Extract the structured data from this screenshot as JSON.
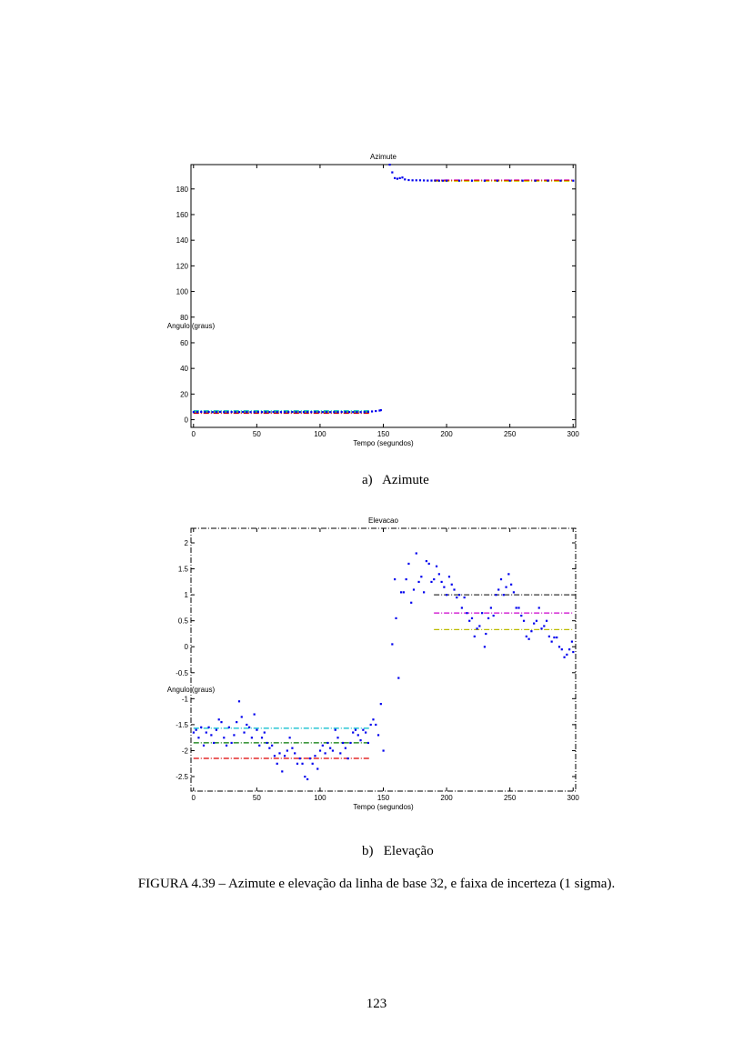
{
  "captions": {
    "a": "a)   Azimute",
    "b": "b)   Elevação",
    "figure": "FIGURA 4.39 – Azimute e elevação da linha de base 32, e faixa de incerteza (1 sigma).",
    "page_number": "123"
  },
  "chart_data": [
    {
      "type": "scatter",
      "title": "Azimute",
      "xlabel": "Tempo (segundos)",
      "ylabel": "Angulo (graus)",
      "xlim": [
        -2,
        302
      ],
      "ylim": [
        -6,
        199
      ],
      "xticks": [
        0,
        50,
        100,
        150,
        200,
        250,
        300
      ],
      "yticks": [
        0,
        20,
        40,
        60,
        80,
        100,
        120,
        140,
        160,
        180
      ],
      "ytick_labels": [
        "0",
        "20",
        "40",
        "60",
        "80",
        "100",
        "120",
        "140",
        "160",
        "180"
      ],
      "frame": "solid",
      "points": {
        "color": "#0000ee",
        "x": [
          0,
          3,
          6,
          9,
          12,
          15,
          18,
          21,
          24,
          27,
          30,
          33,
          36,
          39,
          42,
          45,
          48,
          51,
          54,
          57,
          60,
          63,
          66,
          69,
          72,
          75,
          78,
          81,
          84,
          87,
          90,
          93,
          96,
          99,
          102,
          105,
          108,
          111,
          114,
          117,
          120,
          123,
          126,
          129,
          132,
          135,
          138,
          141,
          144,
          147,
          148,
          155,
          157,
          159,
          161,
          163,
          165,
          167,
          170,
          173,
          176,
          179,
          182,
          185,
          188,
          191,
          194,
          197,
          200,
          210,
          220,
          230,
          240,
          250,
          260,
          270,
          280,
          290,
          300
        ],
        "y": [
          6,
          6,
          6.2,
          6,
          6.1,
          6,
          6,
          6.2,
          6,
          6,
          6.1,
          6,
          6,
          6.1,
          6,
          6,
          6,
          6.1,
          6,
          6,
          6,
          6.1,
          6,
          6,
          6,
          6,
          6.1,
          6,
          6,
          6,
          6,
          6,
          6.1,
          6,
          6,
          6,
          6,
          6,
          6,
          6.1,
          6,
          6,
          6,
          6,
          6,
          6,
          6.2,
          6.5,
          6.8,
          7.2,
          7.5,
          199,
          193,
          188.5,
          188,
          188.5,
          189,
          187.5,
          187,
          186.8,
          186.8,
          186.8,
          186.7,
          186.6,
          186.6,
          186.6,
          186.5,
          186.5,
          186.5,
          186.5,
          186.5,
          186.5,
          186.5,
          186.5,
          186.5,
          186.5,
          186.5,
          186.5,
          186.5
        ]
      },
      "series": [
        {
          "name": "upper-1",
          "color": "#00bbbb",
          "x": [
            0,
            140
          ],
          "y": [
            7,
            7
          ]
        },
        {
          "name": "mean-1",
          "color": "#007700",
          "x": [
            0,
            140
          ],
          "y": [
            6,
            6
          ]
        },
        {
          "name": "lower-1",
          "color": "#dd0000",
          "x": [
            0,
            140
          ],
          "y": [
            5,
            5
          ]
        },
        {
          "name": "upper-2",
          "color": "#cc00cc",
          "x": [
            190,
            300
          ],
          "y": [
            187,
            187
          ]
        },
        {
          "name": "mean-2",
          "color": "#dd0000",
          "x": [
            190,
            300
          ],
          "y": [
            186.6,
            186.6
          ]
        },
        {
          "name": "lower-2",
          "color": "#cccc00",
          "x": [
            190,
            300
          ],
          "y": [
            186,
            186
          ]
        }
      ]
    },
    {
      "type": "scatter",
      "title": "Elevacao",
      "xlabel": "Tempo (segundos)",
      "ylabel": "Angulo (graus)",
      "xlim": [
        -2,
        302
      ],
      "ylim": [
        -2.78,
        2.28
      ],
      "xticks": [
        0,
        50,
        100,
        150,
        200,
        250,
        300
      ],
      "yticks": [
        -2.5,
        -2,
        -1.5,
        -1,
        -0.5,
        0,
        0.5,
        1,
        1.5,
        2
      ],
      "ytick_labels": [
        "-2.5",
        "-2",
        "-1.5",
        "-1",
        "-0.5",
        "0",
        "0.5",
        "1",
        "1.5",
        "2"
      ],
      "frame": "dashdot",
      "points": {
        "color": "#0000ee",
        "x": [
          0,
          2,
          4,
          6,
          8,
          10,
          12,
          14,
          16,
          18,
          20,
          22,
          24,
          26,
          28,
          30,
          32,
          34,
          36,
          38,
          40,
          42,
          44,
          46,
          48,
          50,
          52,
          54,
          56,
          58,
          60,
          62,
          64,
          66,
          68,
          70,
          72,
          74,
          76,
          78,
          80,
          82,
          84,
          86,
          88,
          90,
          92,
          94,
          96,
          98,
          100,
          102,
          104,
          106,
          108,
          110,
          112,
          114,
          116,
          118,
          120,
          122,
          124,
          126,
          128,
          130,
          132,
          134,
          136,
          138,
          140,
          142,
          144,
          146,
          148,
          150,
          157,
          159,
          160,
          162,
          164,
          166,
          168,
          170,
          172,
          174,
          176,
          178,
          180,
          182,
          184,
          186,
          188,
          190,
          192,
          194,
          196,
          198,
          200,
          202,
          204,
          206,
          208,
          210,
          212,
          214,
          216,
          218,
          220,
          222,
          224,
          226,
          228,
          230,
          231,
          233,
          235,
          237,
          239,
          241,
          243,
          245,
          247,
          249,
          251,
          253,
          255,
          257,
          259,
          261,
          263,
          265,
          267,
          269,
          271,
          273,
          275,
          277,
          279,
          281,
          283,
          285,
          287,
          289,
          291,
          293,
          295,
          297,
          299,
          300
        ],
        "y": [
          -1.65,
          -1.6,
          -1.75,
          -1.55,
          -1.9,
          -1.65,
          -1.55,
          -1.7,
          -1.85,
          -1.6,
          -1.4,
          -1.45,
          -1.75,
          -1.9,
          -1.55,
          -1.85,
          -1.7,
          -1.45,
          -1.05,
          -1.35,
          -1.65,
          -1.5,
          -1.55,
          -1.75,
          -1.3,
          -1.6,
          -1.9,
          -1.75,
          -1.65,
          -1.85,
          -1.95,
          -1.9,
          -2.1,
          -2.25,
          -2.05,
          -2.4,
          -2.1,
          -2.0,
          -1.75,
          -1.95,
          -2.05,
          -2.25,
          -2.15,
          -2.25,
          -2.5,
          -2.55,
          -2.15,
          -2.25,
          -2.1,
          -2.35,
          -2.0,
          -1.9,
          -2.05,
          -1.85,
          -1.95,
          -2.0,
          -1.6,
          -1.75,
          -2.05,
          -1.85,
          -1.95,
          -2.15,
          -1.85,
          -1.65,
          -1.6,
          -1.7,
          -1.8,
          -1.6,
          -1.65,
          -1.85,
          -1.5,
          -1.4,
          -1.5,
          -1.7,
          -1.1,
          -2.0,
          0.05,
          1.3,
          0.55,
          -0.6,
          1.05,
          1.05,
          1.3,
          1.6,
          0.85,
          1.1,
          1.8,
          1.25,
          1.35,
          1.05,
          1.65,
          1.6,
          1.25,
          1.3,
          1.55,
          1.4,
          1.25,
          1.15,
          1.0,
          1.35,
          1.2,
          1.1,
          0.95,
          1.0,
          0.75,
          0.95,
          0.65,
          0.5,
          0.55,
          0.2,
          0.35,
          0.4,
          0.65,
          0.0,
          0.25,
          0.55,
          0.75,
          0.6,
          1.0,
          1.1,
          1.3,
          1.0,
          1.15,
          1.4,
          1.2,
          1.05,
          0.75,
          0.75,
          0.6,
          0.5,
          0.2,
          0.15,
          0.3,
          0.45,
          0.5,
          0.75,
          0.35,
          0.4,
          0.5,
          0.2,
          0.1,
          0.18,
          0.18,
          0.0,
          -0.05,
          -0.2,
          -0.15,
          -0.05,
          0.1,
          -0.1
        ]
      },
      "series": [
        {
          "name": "upper-1",
          "color": "#00bbcc",
          "x": [
            0,
            140
          ],
          "y": [
            -1.57,
            -1.57
          ]
        },
        {
          "name": "mean-1",
          "color": "#007700",
          "x": [
            0,
            140
          ],
          "y": [
            -1.85,
            -1.85
          ]
        },
        {
          "name": "lower-1",
          "color": "#dd0000",
          "x": [
            0,
            140
          ],
          "y": [
            -2.15,
            -2.15
          ]
        },
        {
          "name": "upper-2",
          "color": "#333333",
          "x": [
            190,
            300
          ],
          "y": [
            1.0,
            1.0
          ]
        },
        {
          "name": "mean-2",
          "color": "#cc00cc",
          "x": [
            190,
            300
          ],
          "y": [
            0.65,
            0.65
          ]
        },
        {
          "name": "lower-2",
          "color": "#bbbb00",
          "x": [
            190,
            300
          ],
          "y": [
            0.33,
            0.33
          ]
        }
      ]
    }
  ]
}
